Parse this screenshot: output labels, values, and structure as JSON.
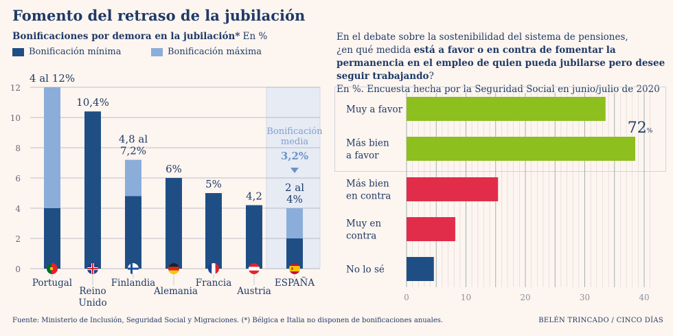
{
  "title": "Fomento del retraso de la jubilación",
  "left_subtitle_bold": "Bonificaciones por demora en la jubilación*",
  "left_subtitle_unit": " En %",
  "right_question": {
    "line1": "En el debate sobre la sostenibilidad del sistema de pensiones,",
    "line2_pre": "¿en qué medida ",
    "line2_bold": "está a favor o en contra de fomentar la permanencia en el empleo de quien pueda jubilarse pero desee seguir trabajando",
    "line2_post": "?",
    "line3": "En %. Encuesta hecha por la Seguridad Social en junio/julio de 2020"
  },
  "footer": "Fuente: Ministerio de Inclusión, Seguridad Social y Migraciones. (*) Bélgica e Italia no disponen de bonificaciones anuales.",
  "credit": "BELÉN TRINCADO / CINCO DÍAS",
  "colors": {
    "dark_blue": "#1f4e85",
    "light_blue": "#8badd9",
    "green": "#8dbf1e",
    "red": "#e22d4a",
    "highlight": "#e6ebf4",
    "text": "#1f3a68"
  },
  "chart_data": [
    {
      "type": "bar",
      "stacked": true,
      "ylim": [
        0,
        12
      ],
      "yticks": [
        0,
        2,
        4,
        6,
        8,
        10,
        12
      ],
      "grid": true,
      "legend_placement": "top-left",
      "series": [
        {
          "name": "Bonificación mínima",
          "color": "#1f4e85"
        },
        {
          "name": "Bonificación máxima",
          "color": "#8badd9"
        }
      ],
      "categories": [
        "Portugal",
        "Reino Unido",
        "Finlandia",
        "Alemania",
        "Francia",
        "Austria",
        "ESPAÑA"
      ],
      "min": [
        4,
        10.4,
        4.8,
        6,
        5,
        4.2,
        2
      ],
      "max": [
        12,
        null,
        7.2,
        null,
        null,
        null,
        4
      ],
      "data_labels": [
        [
          "4 al 12%"
        ],
        [
          "10,4%"
        ],
        [
          "4,8 al",
          "7,2%"
        ],
        [
          "6%"
        ],
        [
          "5%"
        ],
        [
          "4,2"
        ],
        [
          "2 al",
          "4%"
        ]
      ],
      "flags": [
        "portugal-flag",
        "uk-flag",
        "finland-flag",
        "germany-flag",
        "france-flag",
        "austria-flag",
        "spain-flag"
      ],
      "annotation": {
        "lines": [
          "Bonificación",
          "media"
        ],
        "value": "3,2%"
      }
    },
    {
      "type": "bar",
      "orientation": "horizontal",
      "xlim": [
        0,
        40
      ],
      "xticks": [
        0,
        10,
        20,
        30,
        40
      ],
      "grid": true,
      "categories": [
        [
          "Muy a favor"
        ],
        [
          "Más bien",
          "a favor"
        ],
        [
          "Más bien",
          "en contra"
        ],
        [
          "Muy en",
          "contra"
        ],
        [
          "No lo sé"
        ]
      ],
      "values": [
        33.5,
        38.5,
        15.4,
        8.2,
        4.6
      ],
      "bar_colors": [
        "#8dbf1e",
        "#8dbf1e",
        "#e22d4a",
        "#e22d4a",
        "#1f4e85"
      ],
      "group_annotation": {
        "value": "72",
        "unit": "%"
      }
    }
  ]
}
